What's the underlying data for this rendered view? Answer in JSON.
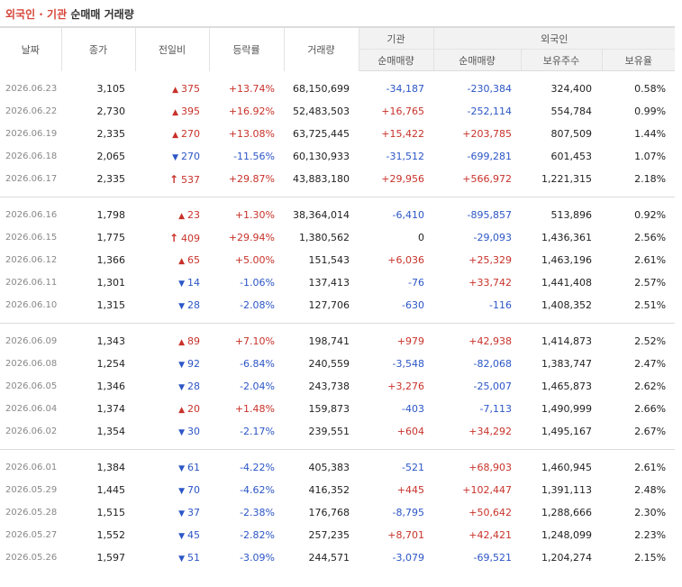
{
  "title": {
    "part1": "외국인 · 기관",
    "part2": "순매매 거래량"
  },
  "headers": {
    "date": "날짜",
    "close": "종가",
    "change": "전일비",
    "rate": "등락률",
    "volume": "거래량",
    "institution": "기관",
    "foreign": "외국인",
    "inst_net": "순매매량",
    "foreign_net": "순매매량",
    "holdings": "보유주수",
    "ratio": "보유율"
  },
  "colors": {
    "up": "#c8322a",
    "down": "#2c56c6"
  },
  "rows": [
    {
      "date": "2026.06.23",
      "close": "3,105",
      "dir": "up",
      "change": "375",
      "rate": "+13.74%",
      "volume": "68,150,699",
      "inst": "-34,187",
      "foreign": "-230,384",
      "holdings": "324,400",
      "ratio": "0.58%"
    },
    {
      "date": "2026.06.22",
      "close": "2,730",
      "dir": "up",
      "change": "395",
      "rate": "+16.92%",
      "volume": "52,483,503",
      "inst": "+16,765",
      "foreign": "-252,114",
      "holdings": "554,784",
      "ratio": "0.99%"
    },
    {
      "date": "2026.06.19",
      "close": "2,335",
      "dir": "up",
      "change": "270",
      "rate": "+13.08%",
      "volume": "63,725,445",
      "inst": "+15,422",
      "foreign": "+203,785",
      "holdings": "807,509",
      "ratio": "1.44%"
    },
    {
      "date": "2026.06.18",
      "close": "2,065",
      "dir": "down",
      "change": "270",
      "rate": "-11.56%",
      "volume": "60,130,933",
      "inst": "-31,512",
      "foreign": "-699,281",
      "holdings": "601,453",
      "ratio": "1.07%"
    },
    {
      "date": "2026.06.17",
      "close": "2,335",
      "dir": "limit",
      "change": "537",
      "rate": "+29.87%",
      "volume": "43,883,180",
      "inst": "+29,956",
      "foreign": "+566,972",
      "holdings": "1,221,315",
      "ratio": "2.18%"
    },
    {
      "date": "2026.06.16",
      "close": "1,798",
      "dir": "up",
      "change": "23",
      "rate": "+1.30%",
      "volume": "38,364,014",
      "inst": "-6,410",
      "foreign": "-895,857",
      "holdings": "513,896",
      "ratio": "0.92%"
    },
    {
      "date": "2026.06.15",
      "close": "1,775",
      "dir": "limit",
      "change": "409",
      "rate": "+29.94%",
      "volume": "1,380,562",
      "inst": "0",
      "foreign": "-29,093",
      "holdings": "1,436,361",
      "ratio": "2.56%"
    },
    {
      "date": "2026.06.12",
      "close": "1,366",
      "dir": "up",
      "change": "65",
      "rate": "+5.00%",
      "volume": "151,543",
      "inst": "+6,036",
      "foreign": "+25,329",
      "holdings": "1,463,196",
      "ratio": "2.61%"
    },
    {
      "date": "2026.06.11",
      "close": "1,301",
      "dir": "down",
      "change": "14",
      "rate": "-1.06%",
      "volume": "137,413",
      "inst": "-76",
      "foreign": "+33,742",
      "holdings": "1,441,408",
      "ratio": "2.57%"
    },
    {
      "date": "2026.06.10",
      "close": "1,315",
      "dir": "down",
      "change": "28",
      "rate": "-2.08%",
      "volume": "127,706",
      "inst": "-630",
      "foreign": "-116",
      "holdings": "1,408,352",
      "ratio": "2.51%"
    },
    {
      "date": "2026.06.09",
      "close": "1,343",
      "dir": "up",
      "change": "89",
      "rate": "+7.10%",
      "volume": "198,741",
      "inst": "+979",
      "foreign": "+42,938",
      "holdings": "1,414,873",
      "ratio": "2.52%"
    },
    {
      "date": "2026.06.08",
      "close": "1,254",
      "dir": "down",
      "change": "92",
      "rate": "-6.84%",
      "volume": "240,559",
      "inst": "-3,548",
      "foreign": "-82,068",
      "holdings": "1,383,747",
      "ratio": "2.47%"
    },
    {
      "date": "2026.06.05",
      "close": "1,346",
      "dir": "down",
      "change": "28",
      "rate": "-2.04%",
      "volume": "243,738",
      "inst": "+3,276",
      "foreign": "-25,007",
      "holdings": "1,465,873",
      "ratio": "2.62%"
    },
    {
      "date": "2026.06.04",
      "close": "1,374",
      "dir": "up",
      "change": "20",
      "rate": "+1.48%",
      "volume": "159,873",
      "inst": "-403",
      "foreign": "-7,113",
      "holdings": "1,490,999",
      "ratio": "2.66%"
    },
    {
      "date": "2026.06.02",
      "close": "1,354",
      "dir": "down",
      "change": "30",
      "rate": "-2.17%",
      "volume": "239,551",
      "inst": "+604",
      "foreign": "+34,292",
      "holdings": "1,495,167",
      "ratio": "2.67%"
    },
    {
      "date": "2026.06.01",
      "close": "1,384",
      "dir": "down",
      "change": "61",
      "rate": "-4.22%",
      "volume": "405,383",
      "inst": "-521",
      "foreign": "+68,903",
      "holdings": "1,460,945",
      "ratio": "2.61%"
    },
    {
      "date": "2026.05.29",
      "close": "1,445",
      "dir": "down",
      "change": "70",
      "rate": "-4.62%",
      "volume": "416,352",
      "inst": "+445",
      "foreign": "+102,447",
      "holdings": "1,391,113",
      "ratio": "2.48%"
    },
    {
      "date": "2026.05.28",
      "close": "1,515",
      "dir": "down",
      "change": "37",
      "rate": "-2.38%",
      "volume": "176,768",
      "inst": "-8,795",
      "foreign": "+50,642",
      "holdings": "1,288,666",
      "ratio": "2.30%"
    },
    {
      "date": "2026.05.27",
      "close": "1,552",
      "dir": "down",
      "change": "45",
      "rate": "-2.82%",
      "volume": "257,235",
      "inst": "+8,701",
      "foreign": "+42,421",
      "holdings": "1,248,099",
      "ratio": "2.23%"
    },
    {
      "date": "2026.05.26",
      "close": "1,597",
      "dir": "down",
      "change": "51",
      "rate": "-3.09%",
      "volume": "244,571",
      "inst": "-3,079",
      "foreign": "-69,521",
      "holdings": "1,204,274",
      "ratio": "2.15%"
    }
  ]
}
